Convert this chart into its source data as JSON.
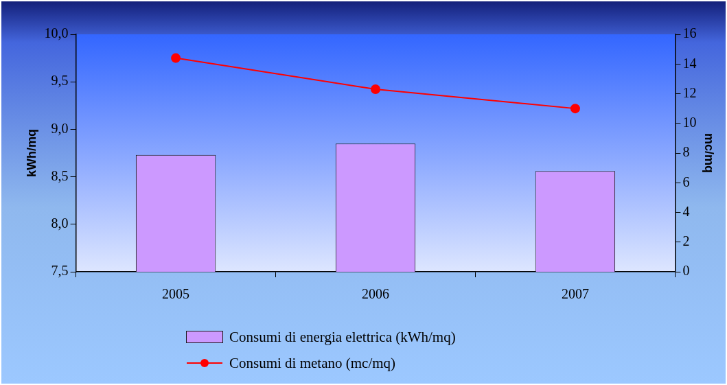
{
  "chart_data": {
    "type": "bar",
    "categories": [
      "2005",
      "2006",
      "2007"
    ],
    "series": [
      {
        "name": "Consumi di energia elettrica (kWh/mq)",
        "type": "bar",
        "color": "#cc99ff",
        "values": [
          8.73,
          8.85,
          8.56
        ]
      },
      {
        "name": "Consumi di metano (mc/mq)",
        "type": "line",
        "axis": "y2",
        "color": "#ff0000",
        "marker": "circle",
        "values": [
          14.4,
          12.3,
          11.0
        ]
      }
    ],
    "ylabel": "kWh/mq",
    "y2label": "mc/mq",
    "ylim": [
      7.5,
      10
    ],
    "yticks": [
      {
        "value": 7.5,
        "label": "7,5"
      },
      {
        "value": 8,
        "label": "8,0"
      },
      {
        "value": 8.5,
        "label": "8,5"
      },
      {
        "value": 9,
        "label": "9,0"
      },
      {
        "value": 9.5,
        "label": "9,5"
      },
      {
        "value": 10,
        "label": "10,0"
      }
    ],
    "y2lim": [
      0,
      16
    ],
    "y2ticks": [
      0,
      2,
      4,
      6,
      8,
      10,
      12,
      14,
      16
    ],
    "grid": false,
    "legend": "bottom"
  }
}
